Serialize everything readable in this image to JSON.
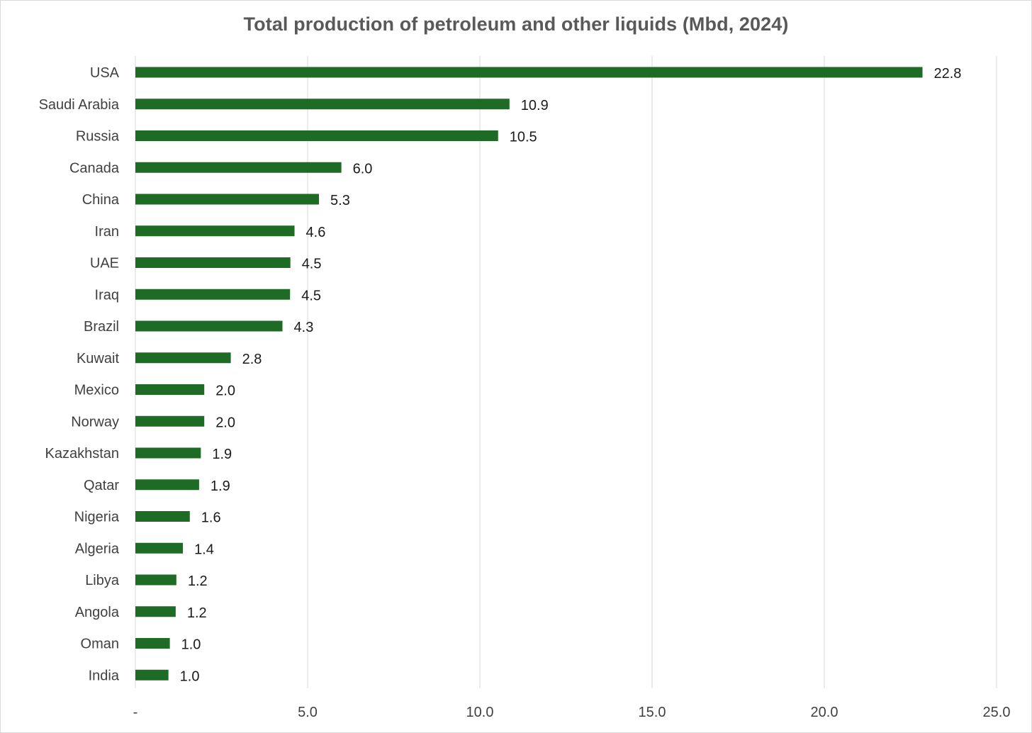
{
  "chart_data": {
    "type": "bar",
    "orientation": "horizontal",
    "title": "Total production of petroleum and other liquids (Mbd, 2024)",
    "xlabel": "",
    "ylabel": "",
    "categories": [
      "USA",
      "Saudi Arabia",
      "Russia",
      "Canada",
      "China",
      "Iran",
      "UAE",
      "Iraq",
      "Brazil",
      "Kuwait",
      "Mexico",
      "Norway",
      "Kazakhstan",
      "Qatar",
      "Nigeria",
      "Algeria",
      "Libya",
      "Angola",
      "Oman",
      "India"
    ],
    "values": [
      22.85,
      10.86,
      10.53,
      5.98,
      5.33,
      4.62,
      4.5,
      4.49,
      4.27,
      2.77,
      2.0,
      2.0,
      1.9,
      1.85,
      1.58,
      1.38,
      1.19,
      1.17,
      1.0,
      0.96
    ],
    "data_labels": [
      "22.8",
      "10.9",
      "10.5",
      "6.0",
      "5.3",
      "4.6",
      "4.5",
      "4.5",
      "4.3",
      "2.8",
      "2.0",
      "2.0",
      "1.9",
      "1.9",
      "1.6",
      "1.4",
      "1.2",
      "1.2",
      "1.0",
      "1.0"
    ],
    "xlim": [
      0,
      25
    ],
    "x_ticks": [
      0,
      5,
      10,
      15,
      20,
      25
    ],
    "x_tick_labels": [
      "-",
      "5.0",
      "10.0",
      "15.0",
      "20.0",
      "25.0"
    ],
    "grid": "vertical",
    "legend": "none",
    "colors": {
      "bar": "#1e6b25",
      "grid": "#d9d9d9",
      "title": "#595959"
    }
  }
}
